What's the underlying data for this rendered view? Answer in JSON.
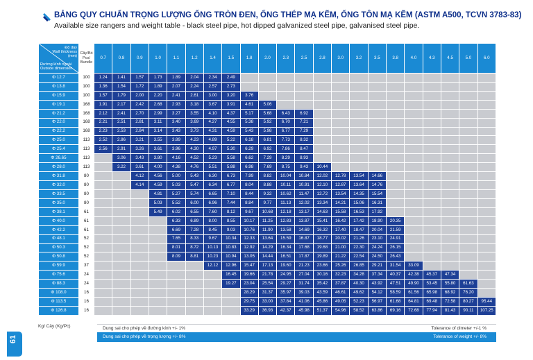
{
  "title": "BẢNG QUY CHUẨN TRỌNG LƯỢNG ỐNG TRÒN ĐEN, ỐNG THÉP MẠ KẼM, ỐNG TÔN MẠ KẼM (ASTM A500, TCVN 3783-83)",
  "subtitle": "Available size rangers and weight table - black steel pipe, hot dipped galvanized steel pipe, galvanised steel pipe.",
  "header": {
    "corner_top": [
      "Độ dày",
      "Wall thickness",
      "(mm)"
    ],
    "corner_bottom": [
      "Đường kính ngoài",
      "Outside dimension"
    ],
    "pcs": [
      "Cây/Bó",
      "Pcs/",
      "Bundle"
    ],
    "thickness": [
      "0.7",
      "0.8",
      "0.9",
      "1.0",
      "1.1",
      "1.2",
      "1.4",
      "1.5",
      "1.8",
      "2.0",
      "2.3",
      "2.5",
      "2.8",
      "3.0",
      "3.2",
      "3.5",
      "3.8",
      "4.0",
      "4.3",
      "4.5",
      "5.0",
      "6.0"
    ]
  },
  "rows": [
    {
      "dim": "Φ 12.7",
      "pcs": "100",
      "start": 0,
      "values": [
        "1.24",
        "1.41",
        "1.57",
        "1.73",
        "1.89",
        "2.04",
        "2.34",
        "2.49"
      ]
    },
    {
      "dim": "Φ 13.8",
      "pcs": "100",
      "start": 0,
      "values": [
        "1.36",
        "1.54",
        "1.72",
        "1.89",
        "2.07",
        "2.24",
        "2.57",
        "2.73"
      ]
    },
    {
      "dim": "Φ 15.9",
      "pcs": "100",
      "start": 0,
      "values": [
        "1.57",
        "1.79",
        "2.00",
        "2.20",
        "2.41",
        "2.61",
        "3.00",
        "3.20",
        "3.76"
      ]
    },
    {
      "dim": "Φ 19.1",
      "pcs": "168",
      "start": 0,
      "values": [
        "1.91",
        "2.17",
        "2.42",
        "2.68",
        "2.93",
        "3.18",
        "3.67",
        "3.91",
        "4.61",
        "5.06"
      ]
    },
    {
      "dim": "Φ 21.2",
      "pcs": "168",
      "start": 0,
      "values": [
        "2.12",
        "2.41",
        "2.70",
        "2.99",
        "3.27",
        "3.55",
        "4.10",
        "4.37",
        "5.17",
        "5.68",
        "6.43",
        "6.92"
      ]
    },
    {
      "dim": "Φ 22.0",
      "pcs": "168",
      "start": 0,
      "values": [
        "2.21",
        "2.51",
        "2.81",
        "3.11",
        "3.40",
        "3.69",
        "4.27",
        "4.55",
        "5.38",
        "5.92",
        "6.70",
        "7.21"
      ]
    },
    {
      "dim": "Φ 22.2",
      "pcs": "168",
      "start": 0,
      "values": [
        "2.23",
        "2.53",
        "2.84",
        "3.14",
        "3.43",
        "3.73",
        "4.31",
        "4.59",
        "5.43",
        "5.98",
        "6.77",
        "7.29"
      ]
    },
    {
      "dim": "Φ 25.0",
      "pcs": "113",
      "start": 0,
      "values": [
        "2.52",
        "2.86",
        "3.21",
        "3.55",
        "3.89",
        "4.23",
        "4.89",
        "5.22",
        "6.18",
        "6.81",
        "7.73",
        "8.32"
      ]
    },
    {
      "dim": "Φ 25.4",
      "pcs": "113",
      "start": 0,
      "values": [
        "2.56",
        "2.91",
        "3.26",
        "3.61",
        "3.96",
        "4.30",
        "4.97",
        "5.30",
        "6.29",
        "6.92",
        "7.86",
        "8.47"
      ]
    },
    {
      "dim": "Φ 26.65",
      "pcs": "113",
      "start": 1,
      "values": [
        "3.06",
        "3.43",
        "3.80",
        "4.16",
        "4.52",
        "5.23",
        "5.58",
        "6.62",
        "7.29",
        "8.29",
        "8.93"
      ]
    },
    {
      "dim": "Φ 28.0",
      "pcs": "113",
      "start": 1,
      "values": [
        "3.22",
        "3.61",
        "4.00",
        "4.38",
        "4.76",
        "5.51",
        "5.88",
        "6.98",
        "7.69",
        "8.75",
        "9.43",
        "10.44"
      ]
    },
    {
      "dim": "Φ 31.8",
      "pcs": "80",
      "start": 2,
      "values": [
        "4.12",
        "4.56",
        "5.00",
        "5.43",
        "6.30",
        "6.73",
        "7.99",
        "8.82",
        "10.04",
        "10.84",
        "12.02",
        "12.78",
        "13.54",
        "14.66"
      ]
    },
    {
      "dim": "Φ 32.0",
      "pcs": "80",
      "start": 2,
      "values": [
        "4.14",
        "4.59",
        "5.03",
        "5.47",
        "6.34",
        "6.77",
        "8.04",
        "8.88",
        "10.11",
        "10.91",
        "12.10",
        "12.87",
        "13.64",
        "14.76"
      ]
    },
    {
      "dim": "Φ 33.5",
      "pcs": "80",
      "start": 3,
      "values": [
        "4.81",
        "5.27",
        "5.74",
        "6.65",
        "7.10",
        "8.44",
        "9.32",
        "10.62",
        "11.47",
        "12.72",
        "13.54",
        "14.35",
        "15.54"
      ]
    },
    {
      "dim": "Φ 35.0",
      "pcs": "80",
      "start": 3,
      "values": [
        "5.03",
        "5.52",
        "6.00",
        "6.96",
        "7.44",
        "8.84",
        "9.77",
        "11.13",
        "12.02",
        "13.34",
        "14.21",
        "15.06",
        "16.31"
      ]
    },
    {
      "dim": "Φ 38.1",
      "pcs": "61",
      "start": 3,
      "values": [
        "5.49",
        "6.02",
        "6.55",
        "7.60",
        "8.12",
        "9.67",
        "10.68",
        "12.18",
        "13.17",
        "14.63",
        "15.58",
        "16.53",
        "17.92"
      ]
    },
    {
      "dim": "Φ 40.0",
      "pcs": "61",
      "start": 4,
      "values": [
        "6.33",
        "6.89",
        "8.00",
        "8.55",
        "10.17",
        "11.25",
        "12.83",
        "13.87",
        "15.41",
        "16.42",
        "17.42",
        "18.90",
        "20.35"
      ]
    },
    {
      "dim": "Φ 42.2",
      "pcs": "61",
      "start": 4,
      "values": [
        "6.69",
        "7.28",
        "8.45",
        "9.03",
        "10.76",
        "11.90",
        "13.58",
        "14.69",
        "16.32",
        "17.40",
        "18.47",
        "20.04",
        "21.59"
      ]
    },
    {
      "dim": "Φ 48.1",
      "pcs": "52",
      "start": 4,
      "values": [
        "7.65",
        "8.33",
        "9.67",
        "10.34",
        "12.33",
        "13.64",
        "15.59",
        "16.87",
        "18.77",
        "20.02",
        "21.26",
        "23.10",
        "24.91"
      ]
    },
    {
      "dim": "Φ 50.3",
      "pcs": "52",
      "start": 4,
      "values": [
        "8.01",
        "8.72",
        "10.13",
        "10.83",
        "12.92",
        "14.29",
        "16.34",
        "17.68",
        "19.68",
        "21.00",
        "22.30",
        "24.24",
        "26.15"
      ]
    },
    {
      "dim": "Φ 50.8",
      "pcs": "52",
      "start": 4,
      "values": [
        "8.09",
        "8.81",
        "10.23",
        "10.94",
        "13.05",
        "14.44",
        "16.51",
        "17.87",
        "19.89",
        "21.22",
        "22.54",
        "24.50",
        "26.43"
      ]
    },
    {
      "dim": "Φ 59.9",
      "pcs": "37",
      "start": 6,
      "values": [
        "12.12",
        "12.96",
        "15.47",
        "17.13",
        "19.60",
        "21.23",
        "23.66",
        "25.26",
        "26.85",
        "29.21",
        "31.54",
        "33.09"
      ]
    },
    {
      "dim": "Φ 75.6",
      "pcs": "24",
      "start": 7,
      "values": [
        "16.45",
        "19.66",
        "21.78",
        "24.95",
        "27.04",
        "30.16",
        "32.23",
        "34.28",
        "37.34",
        "40.37",
        "42.38",
        "45.37",
        "47.34"
      ]
    },
    {
      "dim": "Φ 88.3",
      "pcs": "24",
      "start": 7,
      "values": [
        "19.27",
        "23.04",
        "25.54",
        "29.27",
        "31.74",
        "35.42",
        "37.87",
        "40.30",
        "43.92",
        "47.51",
        "49.90",
        "53.45",
        "55.80",
        "61.63"
      ]
    },
    {
      "dim": "Φ 108.0",
      "pcs": "16",
      "start": 8,
      "values": [
        "28.29",
        "31.37",
        "35.97",
        "39.03",
        "43.59",
        "46.61",
        "49.62",
        "54.12",
        "58.59",
        "61.56",
        "65.98",
        "68.92",
        "76.20"
      ]
    },
    {
      "dim": "Φ 113.5",
      "pcs": "16",
      "start": 8,
      "values": [
        "29.75",
        "33.00",
        "37.84",
        "41.06",
        "45.86",
        "49.05",
        "52.23",
        "56.97",
        "61.68",
        "64.81",
        "69.48",
        "72.58",
        "80.27",
        "95.44"
      ]
    },
    {
      "dim": "Φ 126.8",
      "pcs": "16",
      "start": 8,
      "values": [
        "33.29",
        "36.93",
        "42.37",
        "45.98",
        "51.37",
        "54.96",
        "58.52",
        "63.86",
        "69.16",
        "72.68",
        "77.94",
        "81.43",
        "90.11",
        "107.25"
      ]
    }
  ],
  "unit_note": "Kg/ Cây (Kg/Pc)",
  "tolerance": {
    "diameter_vi": "Dung sai cho phép về đường kính +/- 1%",
    "diameter_en": "Tolerance of dimeter +/-1 %",
    "weight_vi": "Dung sai cho phép về trọng lượng +/- 8%",
    "weight_en": "Tolerance of weight +/- 8%"
  },
  "page_number": "61",
  "colors": {
    "header_blue": "#1a8ad4",
    "value_navy": "#1d3f96",
    "empty_gray": "#c9cbd0",
    "title_navy": "#0d2f8a"
  }
}
